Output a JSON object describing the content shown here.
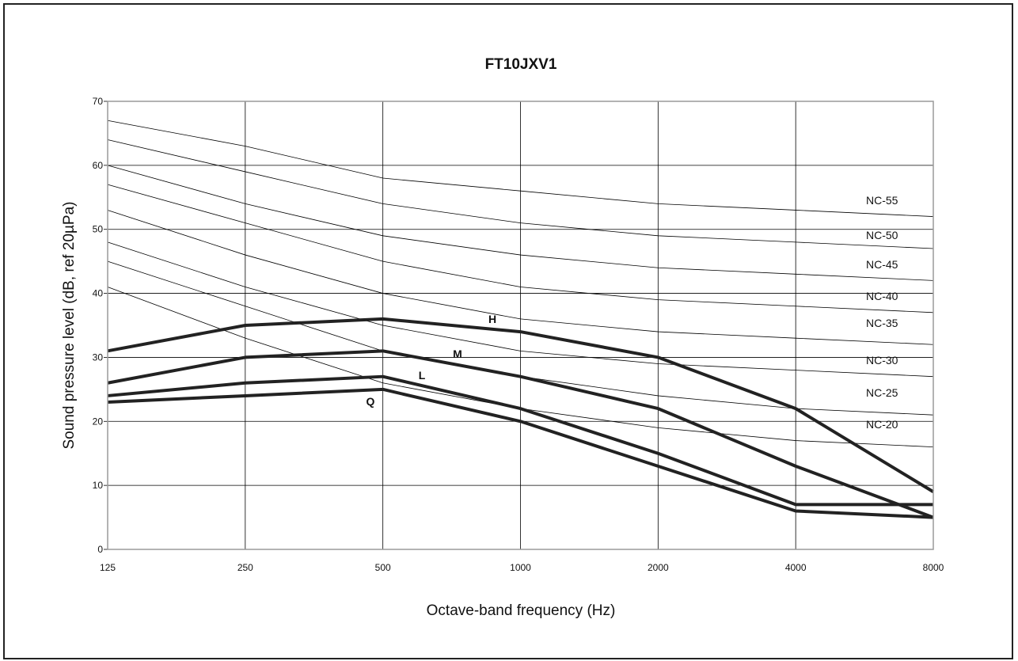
{
  "chart_data": {
    "type": "line",
    "title": "FT10JXV1",
    "xlabel": "Octave-band frequency (Hz)",
    "ylabel": "Sound pressure level (dB, ref 20µPa)",
    "categories": [
      "125",
      "250",
      "500",
      "1000",
      "2000",
      "4000",
      "8000"
    ],
    "ylim": [
      0,
      70
    ],
    "yticks": [
      "0",
      "10",
      "20",
      "30",
      "40",
      "50",
      "60",
      "70"
    ],
    "grid": true,
    "nc_curves": [
      {
        "name": "NC-55",
        "values": [
          67,
          63,
          58,
          56,
          54,
          53,
          52
        ]
      },
      {
        "name": "NC-50",
        "values": [
          64,
          59,
          54,
          51,
          49,
          48,
          47
        ]
      },
      {
        "name": "NC-45",
        "values": [
          60,
          54,
          49,
          46,
          44,
          43,
          42
        ]
      },
      {
        "name": "NC-40",
        "values": [
          57,
          51,
          45,
          41,
          39,
          38,
          37
        ]
      },
      {
        "name": "NC-35",
        "values": [
          53,
          46,
          40,
          36,
          34,
          33,
          32
        ]
      },
      {
        "name": "NC-30",
        "values": [
          48,
          41,
          35,
          31,
          29,
          28,
          27
        ]
      },
      {
        "name": "NC-25",
        "values": [
          45,
          38,
          31,
          27,
          24,
          22,
          21
        ]
      },
      {
        "name": "NC-20",
        "values": [
          41,
          33,
          26,
          22,
          19,
          17,
          16
        ]
      }
    ],
    "series": [
      {
        "name": "H",
        "values": [
          31,
          35,
          36,
          34,
          30,
          22,
          9
        ]
      },
      {
        "name": "M",
        "values": [
          26,
          30,
          31,
          27,
          22,
          13,
          5
        ]
      },
      {
        "name": "L",
        "values": [
          24,
          26,
          27,
          22,
          15,
          7,
          7
        ]
      },
      {
        "name": "Q",
        "values": [
          23,
          24,
          25,
          20,
          13,
          6,
          5
        ]
      }
    ]
  }
}
